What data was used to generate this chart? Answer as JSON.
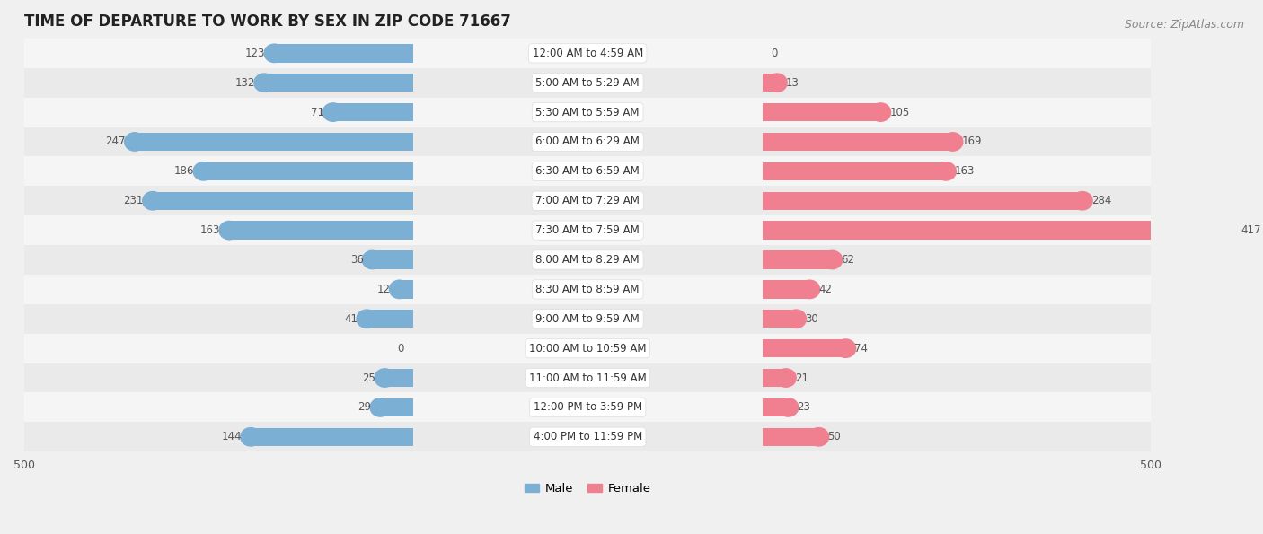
{
  "title": "TIME OF DEPARTURE TO WORK BY SEX IN ZIP CODE 71667",
  "source": "Source: ZipAtlas.com",
  "categories": [
    "12:00 AM to 4:59 AM",
    "5:00 AM to 5:29 AM",
    "5:30 AM to 5:59 AM",
    "6:00 AM to 6:29 AM",
    "6:30 AM to 6:59 AM",
    "7:00 AM to 7:29 AM",
    "7:30 AM to 7:59 AM",
    "8:00 AM to 8:29 AM",
    "8:30 AM to 8:59 AM",
    "9:00 AM to 9:59 AM",
    "10:00 AM to 10:59 AM",
    "11:00 AM to 11:59 AM",
    "12:00 PM to 3:59 PM",
    "4:00 PM to 11:59 PM"
  ],
  "male": [
    123,
    132,
    71,
    247,
    186,
    231,
    163,
    36,
    12,
    41,
    0,
    25,
    29,
    144
  ],
  "female": [
    0,
    13,
    105,
    169,
    163,
    284,
    417,
    62,
    42,
    30,
    74,
    21,
    23,
    50
  ],
  "male_color": "#7bafd4",
  "female_color": "#f08090",
  "male_label": "Male",
  "female_label": "Female",
  "axis_max": 500,
  "row_colors": [
    "#f0f0f0",
    "#e8e8e8"
  ],
  "title_fontsize": 12,
  "source_fontsize": 9,
  "label_fontsize": 8.5,
  "value_fontsize": 8.5,
  "legend_fontsize": 9.5,
  "axis_label_fontsize": 9
}
